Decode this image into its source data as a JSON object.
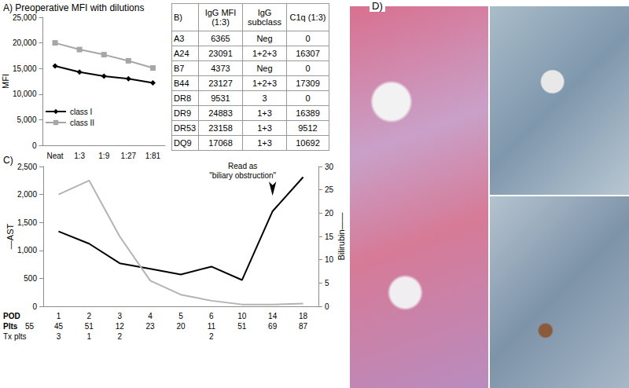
{
  "chart_data": [
    {
      "panel": "A)",
      "type": "line",
      "title": "Preoperative MFI with dilutions",
      "y_label": "MFI",
      "categories": [
        "Neat",
        "1:3",
        "1:9",
        "1:27",
        "1:81"
      ],
      "series": [
        {
          "name": "class I",
          "color": "#000000",
          "marker": "diamond",
          "values": [
            15500,
            14300,
            13500,
            13000,
            12200
          ]
        },
        {
          "name": "class II",
          "color": "#a6a6a6",
          "marker": "square",
          "values": [
            20000,
            18700,
            17700,
            16500,
            15100
          ]
        }
      ],
      "ylim": [
        0,
        25000
      ],
      "yticks": [
        0,
        5000,
        10000,
        15000,
        20000,
        25000
      ],
      "grid": false,
      "legend": "lower left"
    },
    {
      "panel": "C)",
      "type": "line",
      "x_label": "POD",
      "y_label": "—AST",
      "y2_label": "Bilirubin——",
      "categories": [
        "1",
        "2",
        "3",
        "4",
        "5",
        "6",
        "10",
        "14",
        "18"
      ],
      "series": [
        {
          "name": "AST",
          "color": "#000000",
          "marker": "none",
          "values": [
            1340,
            1120,
            770,
            670,
            570,
            710,
            470,
            1700,
            2310
          ]
        },
        {
          "name": "Bilirubin",
          "color": "#b3b3b3",
          "marker": "none",
          "axis": "y2",
          "values": [
            24,
            27,
            15,
            5.5,
            2.5,
            1.2,
            0.4,
            0.4,
            0.6
          ]
        }
      ],
      "platelets": {
        "label": "Plts",
        "preoperative": 55,
        "values": [
          45,
          51,
          12,
          23,
          20,
          11,
          51,
          69,
          87
        ]
      },
      "transfused_platelets": {
        "label": "Tx plts",
        "values": [
          3,
          1,
          2,
          null,
          null,
          2,
          null,
          null,
          null
        ]
      },
      "annotations": [
        {
          "text": "Read as\n\"biliary obstruction\"",
          "x": "14",
          "y": 1850
        }
      ],
      "ylim": [
        0,
        2500
      ],
      "yticks": [
        0,
        500,
        1000,
        1500,
        2000,
        2500
      ],
      "y2lim": [
        0,
        30
      ],
      "y2ticks": [
        0,
        5,
        10,
        15,
        20,
        25,
        30
      ],
      "grid": false
    }
  ],
  "table": {
    "panel": "B)",
    "header": [
      "IgG MFI (1:3)",
      "IgG subclass",
      "C1q (1:3)"
    ],
    "rows": [
      [
        "A3",
        6365,
        "Neg",
        0
      ],
      [
        "A24",
        23091,
        "1+2+3",
        16307
      ],
      [
        "B7",
        4373,
        "Neg",
        0
      ],
      [
        "B44",
        23127,
        "1+2+3",
        17309
      ],
      [
        "DR8",
        9531,
        "3",
        0
      ],
      [
        "DR9",
        24883,
        "1+3",
        16389
      ],
      [
        "DR53",
        23158,
        "1+3",
        9512
      ],
      [
        "DQ9",
        17068,
        "1+3",
        10692
      ]
    ]
  },
  "image_panel": {
    "panel": "D)"
  }
}
